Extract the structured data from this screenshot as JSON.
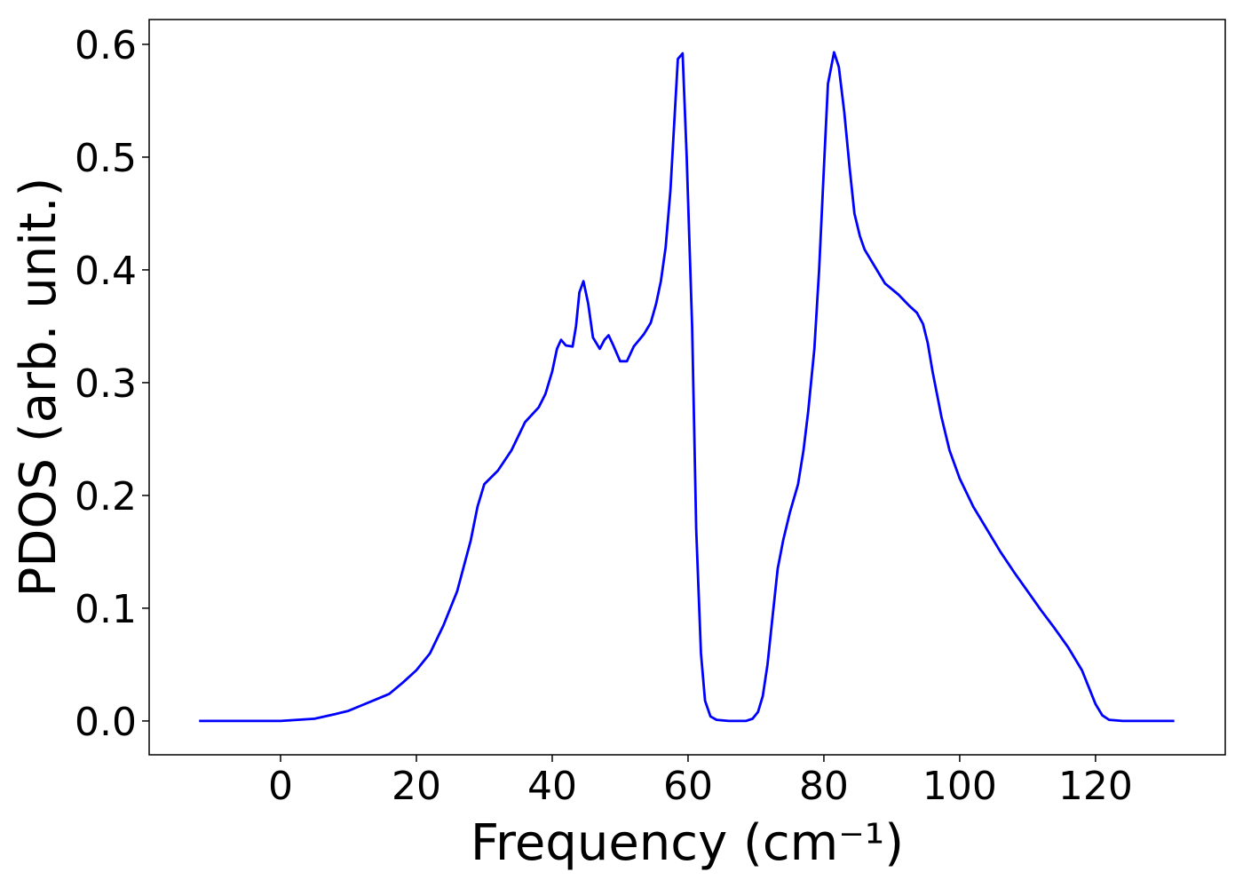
{
  "chart_data": {
    "type": "line",
    "xlabel": "Frequency (cm⁻¹)",
    "ylabel": "PDOS (arb. unit.)",
    "color": "#0000ff",
    "x": [
      -12,
      0,
      5,
      8,
      10,
      12,
      14,
      16,
      18,
      20,
      22,
      24,
      26,
      28,
      29,
      30,
      32,
      34,
      36,
      38,
      39,
      40,
      40.7,
      41.3,
      42,
      43,
      43.5,
      44,
      44.6,
      45.3,
      46,
      47,
      47.7,
      48.3,
      49,
      50,
      51,
      52,
      53.5,
      54.5,
      55.3,
      56,
      56.7,
      57.4,
      58.5,
      59.2,
      59.8,
      60.6,
      61.2,
      61.9,
      62.5,
      63.3,
      64.2,
      66,
      68.5,
      69.5,
      70.3,
      71,
      71.7,
      72.4,
      73.2,
      74,
      75,
      76.2,
      77,
      77.7,
      78.6,
      79.3,
      80,
      80.6,
      81.5,
      82.2,
      83,
      83.8,
      84.5,
      85.3,
      86,
      88,
      89,
      91,
      92.6,
      93.7,
      94.6,
      95.3,
      96,
      97.3,
      98.5,
      100,
      102,
      104,
      106,
      108,
      110,
      112,
      114,
      116,
      118,
      119,
      120,
      121,
      122,
      124,
      131.6
    ],
    "values": [
      0,
      0,
      0.002,
      0.006,
      0.009,
      0.014,
      0.019,
      0.024,
      0.034,
      0.045,
      0.06,
      0.085,
      0.115,
      0.16,
      0.19,
      0.21,
      0.222,
      0.24,
      0.265,
      0.278,
      0.29,
      0.31,
      0.33,
      0.338,
      0.333,
      0.332,
      0.35,
      0.38,
      0.39,
      0.37,
      0.34,
      0.33,
      0.338,
      0.342,
      0.333,
      0.319,
      0.319,
      0.332,
      0.343,
      0.353,
      0.37,
      0.39,
      0.42,
      0.47,
      0.587,
      0.592,
      0.5,
      0.35,
      0.17,
      0.06,
      0.018,
      0.004,
      0.001,
      0,
      0,
      0.002,
      0.008,
      0.022,
      0.05,
      0.09,
      0.135,
      0.16,
      0.185,
      0.21,
      0.24,
      0.275,
      0.33,
      0.4,
      0.49,
      0.565,
      0.593,
      0.58,
      0.54,
      0.49,
      0.45,
      0.43,
      0.418,
      0.398,
      0.388,
      0.378,
      0.368,
      0.362,
      0.352,
      0.335,
      0.31,
      0.27,
      0.24,
      0.215,
      0.19,
      0.17,
      0.15,
      0.132,
      0.115,
      0.098,
      0.082,
      0.065,
      0.045,
      0.03,
      0.015,
      0.005,
      0.001,
      0,
      0
    ],
    "xlim": [
      -19.35,
      139.1
    ],
    "ylim": [
      -0.03,
      0.622
    ],
    "xticks": [
      0,
      20,
      40,
      60,
      80,
      100,
      120
    ],
    "yticks": [
      {
        "value": 0,
        "label": "0.0"
      },
      0.1,
      0.2,
      0.3,
      0.4,
      0.5,
      0.6
    ]
  }
}
